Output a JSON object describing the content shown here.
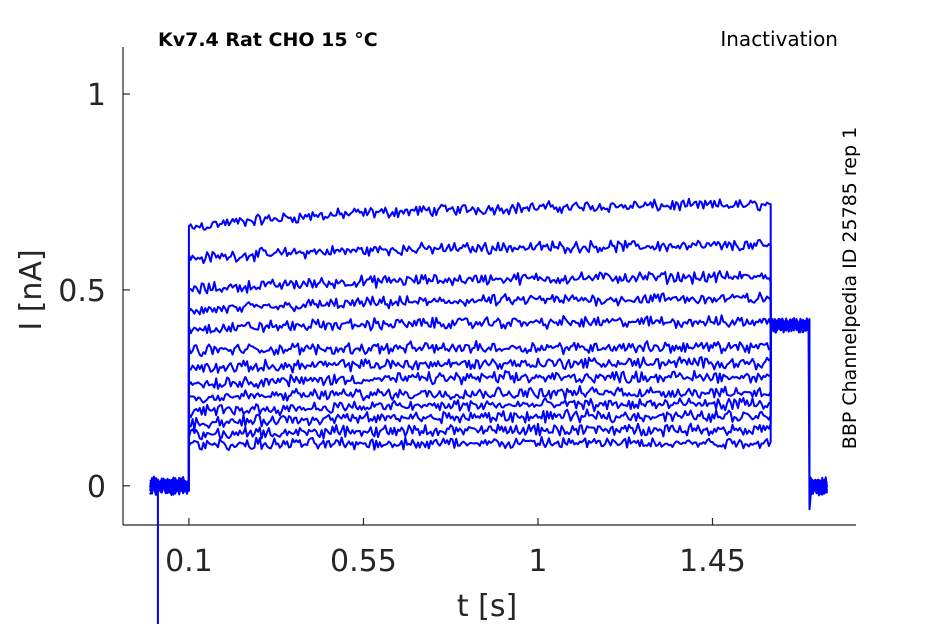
{
  "chart_data": {
    "type": "line",
    "title_left": "Kv7.4  Rat  CHO  15 °C",
    "title_right": "Inactivation",
    "side_note": "BBP Channelpedia ID 25785 rep 1",
    "xlabel": "t [s]",
    "ylabel": "I [nA]",
    "xlim": [
      -0.07,
      1.82
    ],
    "ylim": [
      -0.1,
      1.12
    ],
    "xticks": [
      0.1,
      0.55,
      1,
      1.45
    ],
    "xtick_labels": [
      "0.1",
      "0.55",
      "1",
      "1.45"
    ],
    "yticks": [
      0,
      0.5,
      1
    ],
    "ytick_labels": [
      "0",
      "0.5",
      "1"
    ],
    "grid": false,
    "line_color": "#0000ff",
    "pulse_start": 0.1,
    "pulse_end": 1.6,
    "tail_end": 1.7,
    "record_start": 0.0,
    "record_end": 1.745,
    "series": [
      {
        "start": 0.66,
        "end": 0.72
      },
      {
        "start": 0.58,
        "end": 0.615
      },
      {
        "start": 0.5,
        "end": 0.535
      },
      {
        "start": 0.445,
        "end": 0.48
      },
      {
        "start": 0.4,
        "end": 0.42
      },
      {
        "start": 0.345,
        "end": 0.355
      },
      {
        "start": 0.3,
        "end": 0.315
      },
      {
        "start": 0.26,
        "end": 0.28
      },
      {
        "start": 0.225,
        "end": 0.24
      },
      {
        "start": 0.19,
        "end": 0.21
      },
      {
        "start": 0.16,
        "end": 0.18
      },
      {
        "start": 0.13,
        "end": 0.145
      },
      {
        "start": 0.105,
        "end": 0.11
      }
    ],
    "tail_level": 0.41,
    "baseline": 0.0
  }
}
